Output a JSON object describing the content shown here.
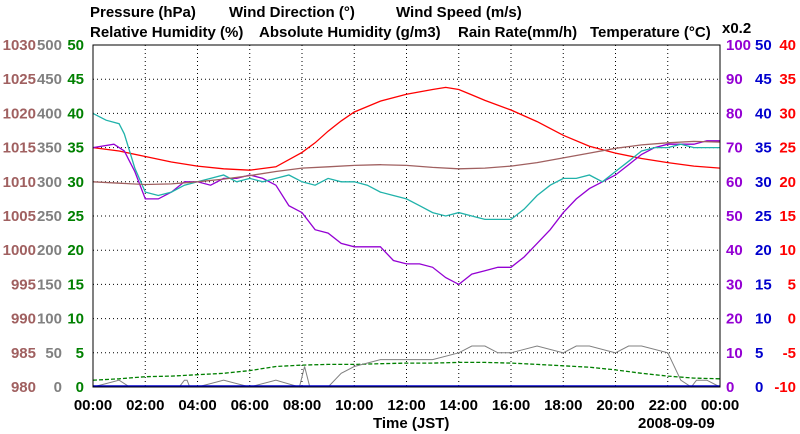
{
  "chart_data": {
    "type": "line",
    "date": "2008-09-09",
    "xlabel": "Time (JST)",
    "xlim": [
      0,
      24
    ],
    "x_ticks": [
      "00:00",
      "02:00",
      "04:00",
      "06:00",
      "08:00",
      "10:00",
      "12:00",
      "14:00",
      "16:00",
      "18:00",
      "20:00",
      "22:00",
      "00:00"
    ],
    "grid": true,
    "scale_note": "x0.2",
    "legend": [
      {
        "label": "Pressure (hPa)",
        "color": "#a06060"
      },
      {
        "label": "Wind Direction (°)",
        "color": "#808080"
      },
      {
        "label": "Wind Speed (m/s)",
        "color": "#008000"
      },
      {
        "label": "Relative Humidity (%)",
        "color": "#9400d3"
      },
      {
        "label": "Absolute Humidity (g/m3)",
        "color": "#20b2aa"
      },
      {
        "label": "Rain Rate(mm/h)",
        "color": "#0000cd"
      },
      {
        "label": "Temperature (°C)",
        "color": "#ff0000"
      }
    ],
    "axes": {
      "pressure": {
        "min": 980,
        "max": 1030,
        "ticks": [
          "1030",
          "1025",
          "1020",
          "1015",
          "1010",
          "1005",
          "1000",
          "995",
          "990",
          "985",
          "980"
        ],
        "color": "#a06060"
      },
      "wind_direction": {
        "min": 0,
        "max": 500,
        "ticks": [
          "500",
          "450",
          "400",
          "350",
          "300",
          "250",
          "200",
          "150",
          "100",
          "50",
          "0"
        ],
        "color": "#808080"
      },
      "wind_speed": {
        "min": 0,
        "max": 50,
        "ticks": [
          "50",
          "45",
          "40",
          "35",
          "30",
          "25",
          "20",
          "15",
          "10",
          "5",
          "0"
        ],
        "color": "#008000"
      },
      "relative_humidity": {
        "min": 0,
        "max": 100,
        "ticks": [
          "100",
          "90",
          "80",
          "70",
          "60",
          "50",
          "40",
          "30",
          "20",
          "10",
          "0"
        ],
        "color": "#9400d3"
      },
      "rain_rate": {
        "min": 0,
        "max": 50,
        "ticks": [
          "50",
          "45",
          "40",
          "35",
          "30",
          "25",
          "20",
          "15",
          "10",
          "5",
          "0"
        ],
        "color": "#0000cd"
      },
      "temperature": {
        "min": -10,
        "max": 40,
        "ticks": [
          "40",
          "35",
          "30",
          "25",
          "20",
          "15",
          "10",
          "5",
          "0",
          "-5",
          "-10"
        ],
        "color": "#ff0000"
      }
    },
    "series": [
      {
        "name": "Temperature",
        "axis": "temperature",
        "color": "#ff0000",
        "x": [
          0,
          1,
          2,
          3,
          4,
          5,
          6,
          7,
          8,
          8.5,
          9,
          9.5,
          10,
          11,
          12,
          13,
          13.5,
          14,
          14.5,
          15,
          16,
          17,
          18,
          19,
          20,
          21,
          22,
          23,
          24
        ],
        "values": [
          25,
          24.5,
          23.7,
          22.9,
          22.3,
          21.9,
          21.7,
          22.2,
          24.3,
          25.7,
          27.4,
          28.9,
          30.2,
          31.8,
          32.8,
          33.5,
          33.8,
          33.5,
          32.7,
          31.9,
          30.5,
          28.8,
          26.8,
          25.2,
          24.2,
          23.4,
          22.8,
          22.3,
          22
        ]
      },
      {
        "name": "Relative Humidity",
        "axis": "relative_humidity",
        "color": "#9400d3",
        "x": [
          0,
          0.8,
          1.2,
          1.6,
          2,
          2.5,
          3,
          3.5,
          4,
          4.5,
          5,
          5.5,
          6,
          6.5,
          7,
          7.5,
          8,
          8.5,
          9,
          9.5,
          10,
          10.5,
          11,
          11.5,
          12,
          12.5,
          13,
          13.5,
          14,
          14.5,
          15,
          15.5,
          16,
          16.5,
          17,
          17.5,
          18,
          18.5,
          19,
          19.5,
          20,
          20.5,
          21,
          21.5,
          22,
          22.5,
          23,
          23.5,
          24
        ],
        "values": [
          70,
          71,
          69,
          63,
          55,
          55,
          57,
          60,
          60,
          59,
          61,
          61,
          62,
          61,
          59,
          53,
          51,
          46,
          45,
          42,
          41,
          41,
          41,
          37,
          36,
          36,
          35,
          32,
          30,
          33,
          34,
          35,
          35,
          38,
          42,
          46,
          51,
          55,
          58,
          60,
          62,
          65,
          68,
          70,
          71,
          71,
          71,
          72,
          72
        ]
      },
      {
        "name": "Absolute Humidity",
        "axis": "relative_humidity",
        "color": "#20b2aa",
        "x": [
          0,
          0.5,
          1,
          1.2,
          1.6,
          2,
          2.5,
          3,
          3.5,
          4,
          4.5,
          5,
          5.5,
          6,
          6.5,
          7,
          7.5,
          8,
          8.5,
          9,
          9.5,
          10,
          10.5,
          11,
          11.5,
          12,
          12.5,
          13,
          13.5,
          14,
          14.5,
          15,
          15.5,
          16,
          16.5,
          17,
          17.5,
          18,
          18.5,
          19,
          19.5,
          20,
          20.5,
          21,
          21.5,
          22,
          22.5,
          23,
          23.5,
          24
        ],
        "values": [
          80,
          78,
          77,
          74,
          64,
          57,
          56,
          57,
          59,
          60,
          61,
          62,
          60,
          61,
          60,
          61,
          62,
          60,
          59,
          61,
          60,
          60,
          59,
          57,
          56,
          55,
          53,
          51,
          50,
          51,
          50,
          49,
          49,
          49,
          52,
          56,
          59,
          61,
          61,
          62,
          60,
          63,
          66,
          69,
          70,
          70,
          71,
          70,
          70,
          70
        ]
      },
      {
        "name": "Pressure",
        "axis": "pressure",
        "color": "#a06060",
        "x": [
          0,
          1,
          2,
          3,
          4,
          5,
          6,
          7,
          8,
          9,
          10,
          11,
          12,
          13,
          14,
          15,
          16,
          17,
          18,
          19,
          20,
          21,
          22,
          23,
          24
        ],
        "values": [
          1010,
          1009.8,
          1009.6,
          1009.7,
          1010,
          1010.4,
          1010.9,
          1011.5,
          1012,
          1012.2,
          1012.4,
          1012.5,
          1012.4,
          1012.1,
          1011.9,
          1012,
          1012.3,
          1012.8,
          1013.5,
          1014.2,
          1014.9,
          1015.4,
          1015.7,
          1015.9,
          1015.8
        ]
      },
      {
        "name": "Wind Speed",
        "axis": "wind_speed",
        "color": "#008000",
        "x": [
          0,
          1,
          2,
          3,
          4,
          5,
          6,
          7,
          8,
          9,
          10,
          11,
          12,
          13,
          14,
          15,
          16,
          17,
          18,
          19,
          20,
          21,
          22,
          23,
          24
        ],
        "values": [
          1,
          1.2,
          1.5,
          1.6,
          1.8,
          2,
          2.4,
          3,
          3.2,
          3.3,
          3.3,
          3.4,
          3.5,
          3.5,
          3.6,
          3.6,
          3.5,
          3.3,
          3.1,
          2.9,
          2.5,
          2,
          1.6,
          1.3,
          1.2
        ]
      },
      {
        "name": "Wind Direction",
        "axis": "wind_direction",
        "color": "#808080",
        "x": [
          0,
          1,
          1.4,
          1.6,
          2.2,
          3.3,
          3.5,
          3.6,
          3.7,
          4,
          5,
          6,
          7,
          7.9,
          8.1,
          8.3,
          9,
          9.5,
          10,
          11,
          12,
          13,
          14,
          14.5,
          15,
          15.5,
          16,
          17,
          18,
          18.5,
          19,
          20,
          20.5,
          21,
          22,
          22.5,
          22.9,
          23.1,
          23.5,
          24
        ],
        "values": [
          0,
          10,
          0,
          0,
          0,
          0,
          10,
          10,
          0,
          0,
          10,
          0,
          10,
          0,
          30,
          0,
          0,
          20,
          30,
          40,
          40,
          40,
          50,
          60,
          60,
          50,
          50,
          60,
          50,
          60,
          60,
          50,
          60,
          60,
          50,
          10,
          0,
          10,
          10,
          0
        ]
      }
    ]
  }
}
